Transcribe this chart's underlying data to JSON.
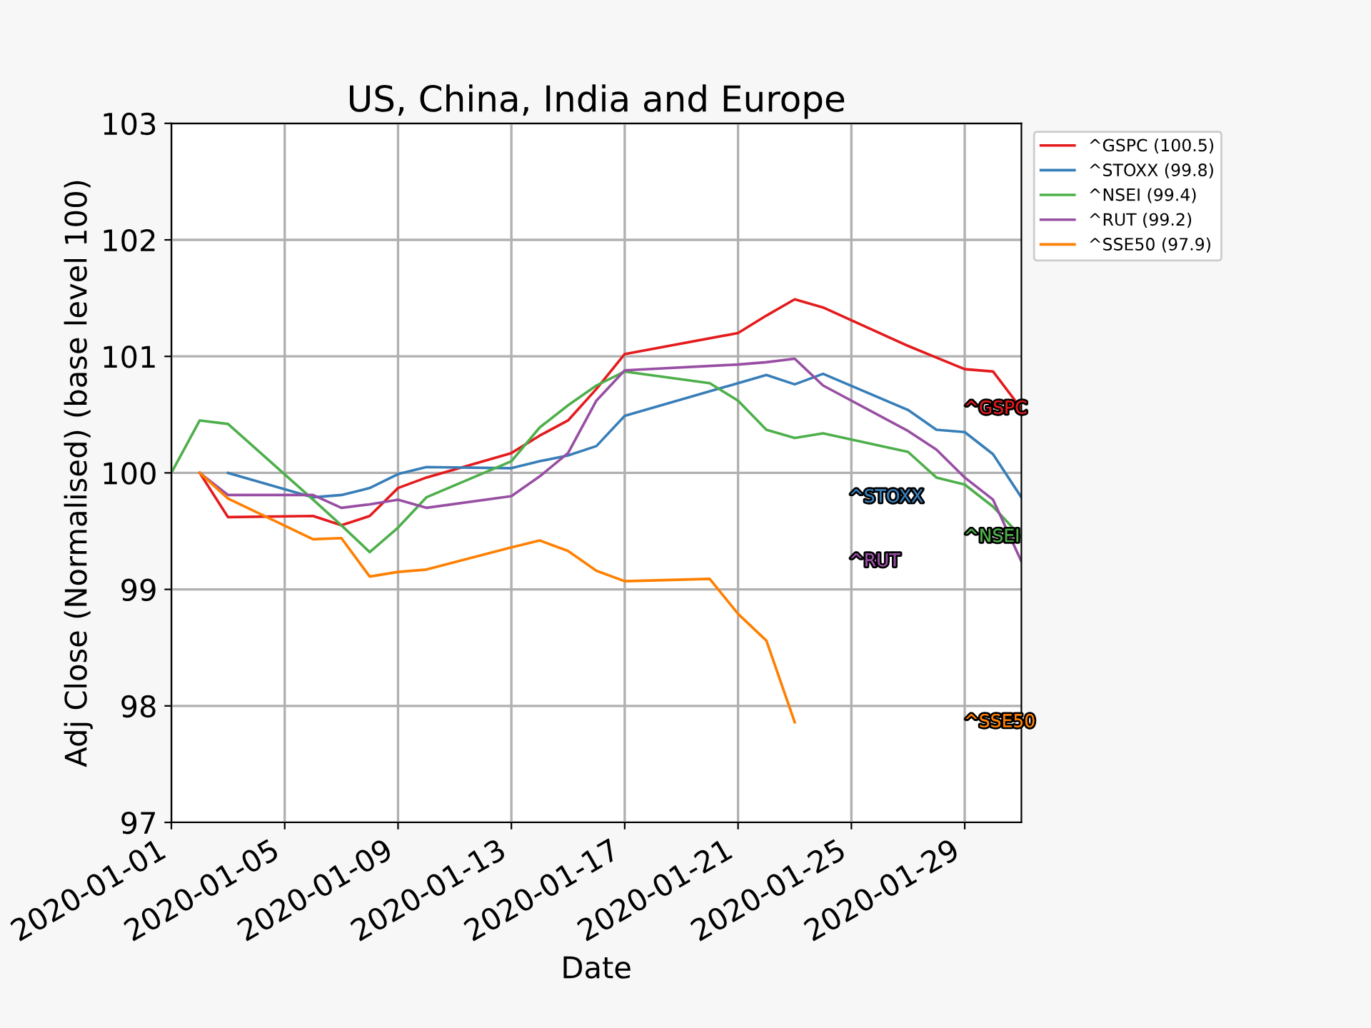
{
  "chart_data": {
    "type": "line",
    "title": "US, China, India and Europe",
    "xlabel": "Date",
    "ylabel": "Adj Close (Normalised) (base level 100)",
    "xlim": [
      "2020-01-01",
      "2020-01-31"
    ],
    "xticks": [
      {
        "value": "2020-01-01",
        "label": "2020-01-01"
      },
      {
        "value": "2020-01-05",
        "label": "2020-01-05"
      },
      {
        "value": "2020-01-09",
        "label": "2020-01-09"
      },
      {
        "value": "2020-01-13",
        "label": "2020-01-13"
      },
      {
        "value": "2020-01-17",
        "label": "2020-01-17"
      },
      {
        "value": "2020-01-21",
        "label": "2020-01-21"
      },
      {
        "value": "2020-01-25",
        "label": "2020-01-25"
      },
      {
        "value": "2020-01-29",
        "label": "2020-01-29"
      }
    ],
    "ylim": [
      97,
      103
    ],
    "yticks": [
      97,
      98,
      99,
      100,
      101,
      102,
      103
    ],
    "grid": true,
    "legend": "top right",
    "marker": "none",
    "line_style": "solid",
    "series": [
      {
        "name": "^GSPC (100.5)",
        "color": "#e41a1c",
        "x": [
          "2020-01-02",
          "2020-01-03",
          "2020-01-06",
          "2020-01-07",
          "2020-01-08",
          "2020-01-09",
          "2020-01-10",
          "2020-01-13",
          "2020-01-14",
          "2020-01-15",
          "2020-01-16",
          "2020-01-17",
          "2020-01-21",
          "2020-01-22",
          "2020-01-23",
          "2020-01-24",
          "2020-01-27",
          "2020-01-28",
          "2020-01-29",
          "2020-01-30",
          "2020-01-31"
        ],
        "values": [
          100,
          99.62,
          99.63,
          99.55,
          99.63,
          99.87,
          99.96,
          100.17,
          100.32,
          100.45,
          100.72,
          101.02,
          101.2,
          101.35,
          101.49,
          101.42,
          101.09,
          100.99,
          100.89,
          100.87,
          100.55
        ]
      },
      {
        "name": "^STOXX (99.8)",
        "color": "#377eb8",
        "x": [
          "2020-01-03",
          "2020-01-06",
          "2020-01-07",
          "2020-01-08",
          "2020-01-09",
          "2020-01-10",
          "2020-01-13",
          "2020-01-14",
          "2020-01-15",
          "2020-01-16",
          "2020-01-17",
          "2020-01-21",
          "2020-01-22",
          "2020-01-23",
          "2020-01-24",
          "2020-01-27",
          "2020-01-28",
          "2020-01-29",
          "2020-01-30",
          "2020-01-31"
        ],
        "values": [
          100,
          99.79,
          99.81,
          99.87,
          99.99,
          100.05,
          100.04,
          100.1,
          100.15,
          100.23,
          100.49,
          100.77,
          100.84,
          100.76,
          100.85,
          100.54,
          100.37,
          100.35,
          100.16,
          99.79
        ]
      },
      {
        "name": "^NSEI (99.4)",
        "color": "#4daf4a",
        "x": [
          "2020-01-01",
          "2020-01-02",
          "2020-01-03",
          "2020-01-06",
          "2020-01-07",
          "2020-01-08",
          "2020-01-09",
          "2020-01-10",
          "2020-01-13",
          "2020-01-14",
          "2020-01-15",
          "2020-01-16",
          "2020-01-17",
          "2020-01-20",
          "2020-01-21",
          "2020-01-22",
          "2020-01-23",
          "2020-01-24",
          "2020-01-27",
          "2020-01-28",
          "2020-01-29",
          "2020-01-30",
          "2020-01-31"
        ],
        "values": [
          100,
          100.45,
          100.42,
          99.77,
          99.55,
          99.32,
          99.53,
          99.79,
          100.1,
          100.39,
          100.58,
          100.75,
          100.87,
          100.77,
          100.62,
          100.37,
          100.3,
          100.34,
          100.18,
          99.96,
          99.9,
          99.71,
          99.45
        ]
      },
      {
        "name": "^RUT (99.2)",
        "color": "#984ea3",
        "x": [
          "2020-01-02",
          "2020-01-03",
          "2020-01-06",
          "2020-01-07",
          "2020-01-08",
          "2020-01-09",
          "2020-01-10",
          "2020-01-13",
          "2020-01-14",
          "2020-01-15",
          "2020-01-16",
          "2020-01-17",
          "2020-01-21",
          "2020-01-22",
          "2020-01-23",
          "2020-01-24",
          "2020-01-27",
          "2020-01-28",
          "2020-01-29",
          "2020-01-30",
          "2020-01-31"
        ],
        "values": [
          100,
          99.81,
          99.81,
          99.7,
          99.73,
          99.77,
          99.7,
          99.8,
          99.97,
          100.17,
          100.62,
          100.88,
          100.93,
          100.95,
          100.98,
          100.75,
          100.36,
          100.2,
          99.96,
          99.77,
          99.24
        ]
      },
      {
        "name": "^SSE50 (97.9)",
        "color": "#ff7f00",
        "x": [
          "2020-01-02",
          "2020-01-03",
          "2020-01-06",
          "2020-01-07",
          "2020-01-08",
          "2020-01-09",
          "2020-01-10",
          "2020-01-13",
          "2020-01-14",
          "2020-01-15",
          "2020-01-16",
          "2020-01-17",
          "2020-01-20",
          "2020-01-21",
          "2020-01-22",
          "2020-01-23"
        ],
        "values": [
          100,
          99.78,
          99.43,
          99.44,
          99.11,
          99.15,
          99.17,
          99.36,
          99.42,
          99.33,
          99.16,
          99.07,
          99.09,
          98.79,
          98.56,
          97.86
        ]
      }
    ],
    "annotations": [
      "^GSPC",
      "^STOXX",
      "^NSEI",
      "^RUT",
      "^SSE50"
    ]
  }
}
